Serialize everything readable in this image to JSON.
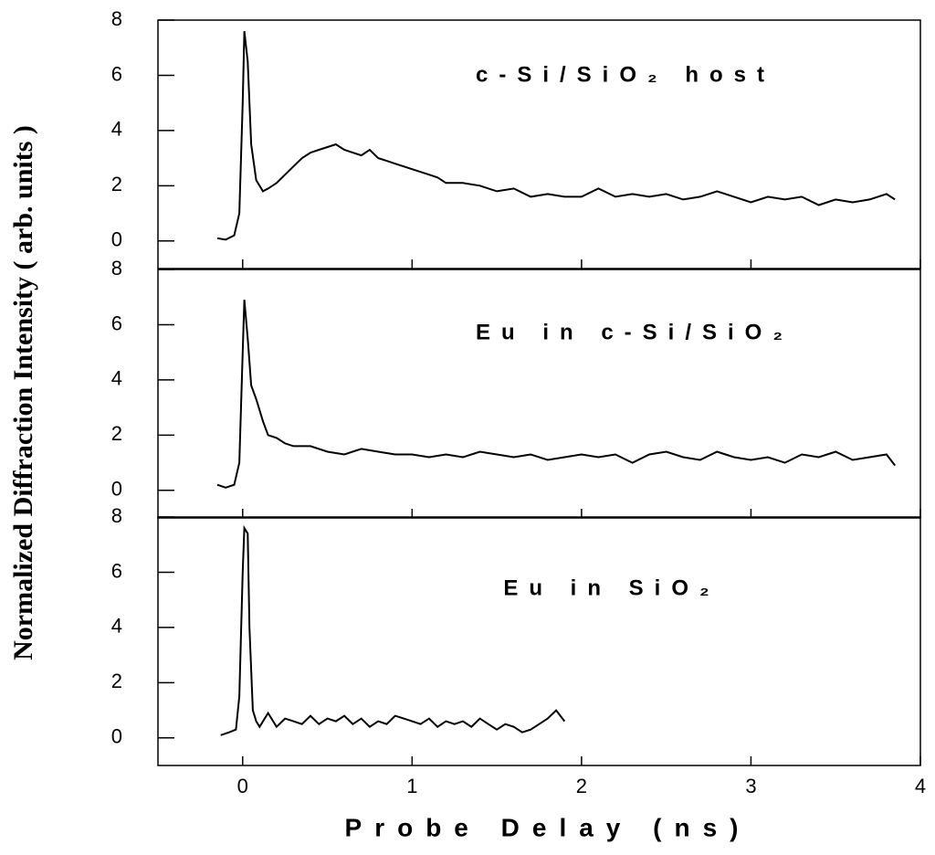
{
  "chart_data": [
    {
      "type": "line",
      "annotation": "c-Si/SiO₂ host",
      "xlim": [
        -0.5,
        4
      ],
      "ylim": [
        -1,
        8
      ],
      "yticks": [
        0,
        2,
        4,
        6,
        8
      ],
      "x": [
        -0.15,
        -0.1,
        -0.05,
        -0.02,
        0,
        0.01,
        0.03,
        0.05,
        0.08,
        0.12,
        0.15,
        0.2,
        0.25,
        0.3,
        0.35,
        0.4,
        0.45,
        0.5,
        0.55,
        0.6,
        0.65,
        0.7,
        0.75,
        0.8,
        0.85,
        0.9,
        0.95,
        1.0,
        1.05,
        1.1,
        1.15,
        1.2,
        1.3,
        1.4,
        1.5,
        1.6,
        1.7,
        1.8,
        1.9,
        2.0,
        2.1,
        2.2,
        2.3,
        2.4,
        2.5,
        2.6,
        2.7,
        2.8,
        2.9,
        3.0,
        3.1,
        3.2,
        3.3,
        3.4,
        3.5,
        3.6,
        3.7,
        3.8,
        3.85
      ],
      "values": [
        0.1,
        0.05,
        0.2,
        1.0,
        5.0,
        7.6,
        6.5,
        3.5,
        2.2,
        1.8,
        1.9,
        2.1,
        2.4,
        2.7,
        3.0,
        3.2,
        3.3,
        3.4,
        3.5,
        3.3,
        3.2,
        3.1,
        3.3,
        3.0,
        2.9,
        2.8,
        2.7,
        2.6,
        2.5,
        2.4,
        2.3,
        2.1,
        2.1,
        2.0,
        1.8,
        1.9,
        1.6,
        1.7,
        1.6,
        1.6,
        1.9,
        1.6,
        1.7,
        1.6,
        1.7,
        1.5,
        1.6,
        1.8,
        1.6,
        1.4,
        1.6,
        1.5,
        1.6,
        1.3,
        1.5,
        1.4,
        1.5,
        1.7,
        1.5
      ],
      "color": "#000000"
    },
    {
      "type": "line",
      "annotation": "Eu in c-Si/SiO₂",
      "ylabel": "Normalized Diffraction Intensity ( arb. units )",
      "xlim": [
        -0.5,
        4
      ],
      "ylim": [
        -1,
        8
      ],
      "yticks": [
        0,
        2,
        4,
        6,
        8
      ],
      "x": [
        -0.15,
        -0.1,
        -0.05,
        -0.02,
        0,
        0.01,
        0.03,
        0.05,
        0.08,
        0.12,
        0.15,
        0.2,
        0.25,
        0.3,
        0.4,
        0.5,
        0.6,
        0.7,
        0.8,
        0.9,
        1.0,
        1.1,
        1.2,
        1.3,
        1.4,
        1.5,
        1.6,
        1.7,
        1.8,
        1.9,
        2.0,
        2.1,
        2.2,
        2.3,
        2.4,
        2.5,
        2.6,
        2.7,
        2.8,
        2.9,
        3.0,
        3.1,
        3.2,
        3.3,
        3.4,
        3.5,
        3.6,
        3.7,
        3.8,
        3.85
      ],
      "values": [
        0.2,
        0.1,
        0.2,
        1.0,
        5.0,
        6.9,
        5.5,
        3.8,
        3.3,
        2.5,
        2.0,
        1.9,
        1.7,
        1.6,
        1.6,
        1.4,
        1.3,
        1.5,
        1.4,
        1.3,
        1.3,
        1.2,
        1.3,
        1.2,
        1.4,
        1.3,
        1.2,
        1.3,
        1.1,
        1.2,
        1.3,
        1.2,
        1.3,
        1.0,
        1.3,
        1.4,
        1.2,
        1.1,
        1.4,
        1.2,
        1.1,
        1.2,
        1.0,
        1.3,
        1.2,
        1.4,
        1.1,
        1.2,
        1.3,
        0.9
      ],
      "color": "#000000"
    },
    {
      "type": "line",
      "annotation": "Eu in SiO₂",
      "xlabel": "Probe Delay (ns)",
      "xlim": [
        -0.5,
        4
      ],
      "xticks": [
        0,
        1,
        2,
        3,
        4
      ],
      "ylim": [
        -1,
        8
      ],
      "yticks": [
        0,
        2,
        4,
        6,
        8
      ],
      "x": [
        -0.13,
        -0.08,
        -0.04,
        -0.02,
        0,
        0.01,
        0.03,
        0.04,
        0.06,
        0.08,
        0.1,
        0.15,
        0.2,
        0.25,
        0.3,
        0.35,
        0.4,
        0.45,
        0.5,
        0.55,
        0.6,
        0.65,
        0.7,
        0.75,
        0.8,
        0.85,
        0.9,
        0.95,
        1.0,
        1.05,
        1.1,
        1.15,
        1.2,
        1.25,
        1.3,
        1.35,
        1.4,
        1.45,
        1.5,
        1.55,
        1.6,
        1.65,
        1.7,
        1.75,
        1.8,
        1.85,
        1.9
      ],
      "values": [
        0.1,
        0.2,
        0.3,
        1.5,
        6.0,
        7.6,
        7.4,
        4.0,
        1.0,
        0.6,
        0.4,
        0.9,
        0.4,
        0.7,
        0.6,
        0.5,
        0.8,
        0.5,
        0.7,
        0.6,
        0.8,
        0.5,
        0.7,
        0.4,
        0.6,
        0.5,
        0.8,
        0.7,
        0.6,
        0.5,
        0.7,
        0.4,
        0.6,
        0.5,
        0.6,
        0.4,
        0.7,
        0.5,
        0.3,
        0.5,
        0.4,
        0.2,
        0.3,
        0.5,
        0.7,
        1.0,
        0.6
      ],
      "color": "#000000"
    }
  ]
}
